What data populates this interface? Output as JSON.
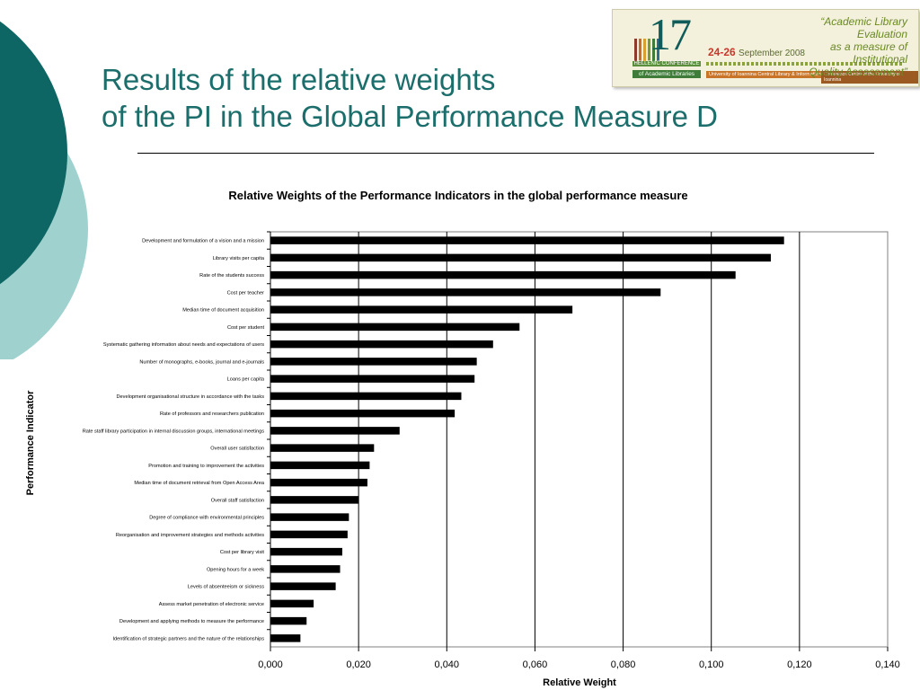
{
  "slide": {
    "title_line1": "Results of the relative weights",
    "title_line2": "of the PI in the Global Performance Measure D"
  },
  "logo": {
    "number": "17",
    "dates": "24-26",
    "month_year": "September 2008",
    "conference_line1": "HELLENIC CONFERENCE",
    "conference_line2": "of Academic Libraries",
    "organizer": "University of Ioannina Central Library & Information Centre",
    "organizer2": "Conference Center of the University of Ioannina",
    "tagline_line1": "“Academic Library Evaluation",
    "tagline_line2": "as a measure of Institutional",
    "tagline_line3": "Quality Assessment”"
  },
  "colors": {
    "title": "#1b6e6b",
    "dark_circle": "#0d6663",
    "light_circle": "#9fd1cf",
    "bar": "#000000"
  },
  "chart_data": {
    "type": "bar",
    "orientation": "horizontal",
    "title": "Relative Weights of the Performance Indicators in the global performance measure",
    "xlabel": "Relative Weight",
    "ylabel": "Performance Indicator",
    "xlim": [
      0,
      0.14
    ],
    "x_ticks": [
      "0,000",
      "0,020",
      "0,040",
      "0,060",
      "0,080",
      "0,100",
      "0,120",
      "0,140"
    ],
    "grid": "vertical",
    "legend": "none",
    "categories": [
      "Development and formulation of a vision and a mission",
      "Library visits per capita",
      "Rate of the students success",
      "Cost per teacher",
      "Median time of document acquisition",
      "Cost per student",
      "Systematic gathering information about needs and expectations of users",
      "Number of monographs, e-books, journal and e-journals",
      "Loans per capita",
      "Development organisational structure in accordance with the tasks",
      "Rate of professors and researchers publication",
      "Rate staff library participation in internal discussion groups, international meetings",
      "Overall user satisfaction",
      "Promotion and training to improvement the activities",
      "Median time of document retrieval from Open Access Area",
      "Overall staff satisfaction",
      "Degree of compliance with environmental principles",
      "Reorganisation and improvement strategies and methods activities",
      "Cost per library visit",
      "Opening hours for a week",
      "Levels of absenteeism or sickness",
      "Assess market penetration of electronic service",
      "Development and applying methods to measure the performance",
      "Identification of strategic partners and the nature of the relationships"
    ],
    "values": [
      0.1165,
      0.1135,
      0.1055,
      0.0885,
      0.0685,
      0.0565,
      0.0505,
      0.0468,
      0.0463,
      0.0433,
      0.0418,
      0.0293,
      0.0235,
      0.0225,
      0.022,
      0.02,
      0.0178,
      0.0175,
      0.0163,
      0.0158,
      0.0148,
      0.0098,
      0.0082,
      0.0068
    ]
  }
}
